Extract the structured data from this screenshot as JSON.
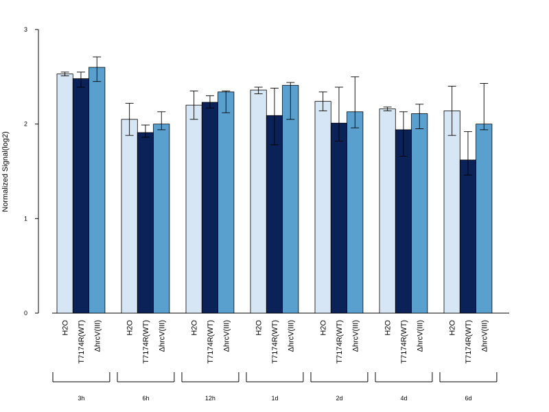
{
  "chart_data": {
    "type": "bar",
    "ylabel": "Normalized Signal(log2)",
    "ylim": [
      0,
      3
    ],
    "yticks": [
      "0",
      "1",
      "2",
      "3"
    ],
    "groups": [
      "3h",
      "6h",
      "12h",
      "1d",
      "2d",
      "4d",
      "6d"
    ],
    "series": [
      {
        "name": "H2O",
        "color": "#d6e6f5",
        "values": [
          2.53,
          2.05,
          2.2,
          2.36,
          2.24,
          2.16,
          2.14
        ],
        "err_low": [
          2.51,
          1.88,
          2.05,
          2.32,
          2.14,
          2.14,
          1.88
        ],
        "err_high": [
          2.55,
          2.22,
          2.35,
          2.39,
          2.34,
          2.18,
          2.4
        ]
      },
      {
        "name": "T7174R(WT)",
        "color": "#0a2257",
        "values": [
          2.48,
          1.91,
          2.23,
          2.09,
          2.01,
          1.94,
          1.62
        ],
        "err_low": [
          2.39,
          1.86,
          2.17,
          1.78,
          1.82,
          1.66,
          1.46
        ],
        "err_high": [
          2.55,
          1.99,
          2.3,
          2.38,
          2.39,
          2.13,
          1.92
        ]
      },
      {
        "name": "ΔhrcV(III)",
        "color": "#5aa0cf",
        "values": [
          2.6,
          2.0,
          2.34,
          2.41,
          2.13,
          2.11,
          2.0
        ],
        "err_low": [
          2.45,
          1.94,
          2.12,
          2.05,
          1.96,
          1.95,
          1.94
        ],
        "err_high": [
          2.71,
          2.13,
          2.35,
          2.44,
          2.5,
          2.21,
          2.43
        ]
      }
    ]
  }
}
